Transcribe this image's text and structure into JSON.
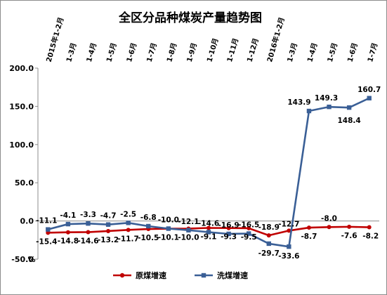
{
  "chart_data": {
    "type": "line",
    "title": "全区分品种煤炭产量趋势图",
    "unit_label": "%",
    "ylim": [
      -50,
      200
    ],
    "yticks": [
      "200.0",
      "150.0",
      "100.0",
      "50.0",
      "0.0",
      "-50.0"
    ],
    "ytick_values": [
      200,
      150,
      100,
      50,
      0,
      -50
    ],
    "categories": [
      "2015年1-2月",
      "1-3月",
      "1-4月",
      "1-5月",
      "1-6月",
      "1-7月",
      "1-8月",
      "1-9月",
      "1-10月",
      "1-11月",
      "1-12月",
      "2016年1-2月",
      "1-3月",
      "1-4月",
      "1-5月",
      "1-6月",
      "1-7月"
    ],
    "series": [
      {
        "name": "原煤增速",
        "color": "#c00000",
        "marker": "circle",
        "values": [
          -15.4,
          -14.8,
          -14.6,
          -13.2,
          -11.7,
          -10.5,
          -10.1,
          -10.0,
          -9.1,
          -9.3,
          -9.5,
          -18.9,
          -12.7,
          -8.7,
          -8.0,
          -7.6,
          -8.2
        ],
        "labels": [
          "-15.4",
          "-14.8",
          "-14.6",
          "-13.2",
          "-11.7",
          "-10.5",
          "-10.1",
          "-10.0",
          "-9.1",
          "-9.3",
          "-9.5",
          "-18.9",
          "-12.7",
          "-8.7",
          "-8.0",
          "-7.6",
          "-8.2"
        ]
      },
      {
        "name": "洗煤增速",
        "color": "#3a5f96",
        "marker": "square",
        "values": [
          -11.1,
          -4.1,
          -3.3,
          -4.7,
          -2.5,
          -6.8,
          -10.0,
          -12.1,
          -14.6,
          -16.9,
          -16.5,
          -29.7,
          -33.6,
          143.9,
          149.3,
          148.4,
          160.7
        ],
        "labels": [
          "-11.1",
          "-4.1",
          "-3.3",
          "-4.7",
          "-2.5",
          "-6.8",
          "-10.0",
          "-12.1",
          "-14.6",
          "-16.9",
          "-16.5",
          "-29.7",
          "-33.6",
          "143.9",
          "149.3",
          "148.4",
          "160.7"
        ]
      }
    ],
    "grid": false,
    "legend_position": "bottom"
  }
}
